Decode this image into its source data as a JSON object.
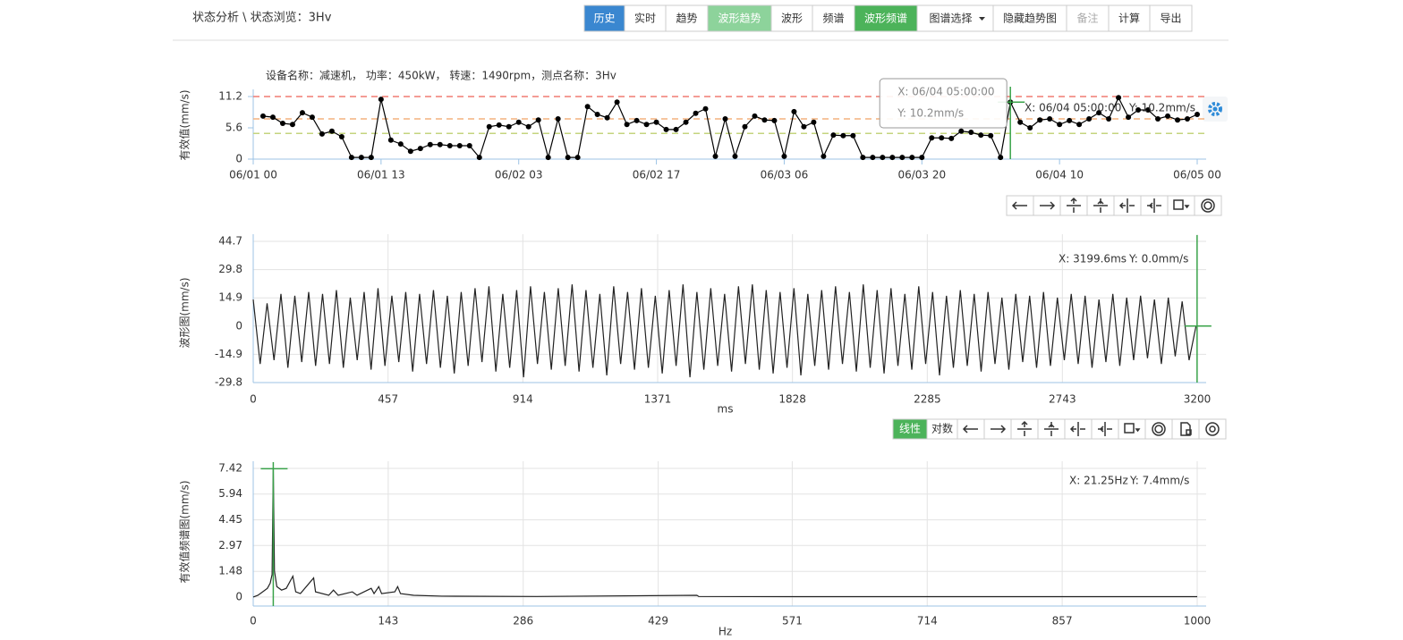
{
  "header": {
    "breadcrumb": "状态分析 \\ 状态浏览：3Hv",
    "buttons": [
      "历史",
      "实时",
      "趋势",
      "波形趋势",
      "波形",
      "频谱",
      "波形频谱",
      "图谱选择",
      "隐藏趋势图",
      "备注",
      "计算",
      "导出"
    ]
  },
  "spectrum_toolbar": [
    "线性",
    "对数"
  ],
  "chart_data": [
    {
      "type": "line",
      "subtitle": "设备名称：减速机， 功率：450kW， 转速：1490rpm，测点名称：3Hv",
      "ylabel": "有效值(mm/s)",
      "markers": true,
      "grid": false,
      "xlim": [
        0,
        96
      ],
      "ylim": [
        0,
        11.2
      ],
      "xticks": [
        {
          "value": 0,
          "label": "06/01 00"
        },
        {
          "value": 13,
          "label": "06/01 13"
        },
        {
          "value": 27,
          "label": "06/02 03"
        },
        {
          "value": 41,
          "label": "06/02 17"
        },
        {
          "value": 54,
          "label": "06/03 06"
        },
        {
          "value": 68,
          "label": "06/03 20"
        },
        {
          "value": 82,
          "label": "06/04 10"
        },
        {
          "value": 96,
          "label": "06/05 00"
        }
      ],
      "yticks": [
        0,
        5.6,
        11.2
      ],
      "thresholds": [
        {
          "value": 11.2,
          "color": "#f07b72"
        },
        {
          "value": 7.2,
          "color": "#f3b27f"
        },
        {
          "value": 4.6,
          "color": "#c4d47e"
        }
      ],
      "series": [
        {
          "color": "#000000",
          "x": [
            1,
            2,
            3,
            4,
            5,
            6,
            7,
            8,
            9,
            10,
            11,
            12,
            13,
            14,
            15,
            16,
            17,
            18,
            19,
            20,
            21,
            22,
            23,
            24,
            25,
            26,
            27,
            28,
            29,
            30,
            31,
            32,
            33,
            34,
            35,
            36,
            37,
            38,
            39,
            40,
            41,
            42,
            43,
            44,
            45,
            46,
            47,
            48,
            49,
            50,
            51,
            52,
            53,
            54,
            55,
            56,
            57,
            58,
            59,
            60,
            61,
            62,
            63,
            64,
            65,
            66,
            67,
            68,
            69,
            70,
            71,
            72,
            73,
            74,
            75,
            76,
            77,
            78,
            79,
            80,
            81,
            82,
            83,
            84,
            85,
            86,
            87,
            88,
            89,
            90,
            91,
            92,
            93,
            94,
            95,
            96
          ],
          "values": [
            7.7,
            7.5,
            6.4,
            6.2,
            8.3,
            7.5,
            4.5,
            5.0,
            4.0,
            0.3,
            0.3,
            0.3,
            10.7,
            3.4,
            2.7,
            1.4,
            1.9,
            2.6,
            2.6,
            2.4,
            2.4,
            2.4,
            0.3,
            5.8,
            6.1,
            5.8,
            6.6,
            5.8,
            7.0,
            0.3,
            7.2,
            0.3,
            0.3,
            9.4,
            8.0,
            7.4,
            10.2,
            6.2,
            6.9,
            6.2,
            6.6,
            5.3,
            5.3,
            6.6,
            8.2,
            9.0,
            0.5,
            7.2,
            0.5,
            5.8,
            7.7,
            7.0,
            6.9,
            0.5,
            8.5,
            5.8,
            6.6,
            0.5,
            4.3,
            4.2,
            4.2,
            0.3,
            0.3,
            0.3,
            0.3,
            0.3,
            0.3,
            0.3,
            3.8,
            3.8,
            3.7,
            5.0,
            4.8,
            4.3,
            4.2,
            0.3,
            10.2,
            6.6,
            5.6,
            7.0,
            7.2,
            6.2,
            6.9,
            6.2,
            7.2,
            8.3,
            7.2,
            11.0,
            7.5,
            8.8,
            8.8,
            7.2,
            7.7,
            7.0,
            7.2,
            8.0
          ]
        }
      ],
      "readout": {
        "x": {
          "value": 77,
          "label": "X: 06/04 05:00:00"
        },
        "y": {
          "value": 10.2,
          "label": "Y: 10.2mm/s"
        }
      }
    },
    {
      "type": "line",
      "ylabel": "波形图(mm/s)",
      "xlabel": "ms",
      "markers": false,
      "grid": true,
      "xlim": [
        0,
        3200
      ],
      "ylim": [
        -29.8,
        44.7
      ],
      "xticks": [
        0,
        457,
        914,
        1371,
        1828,
        2285,
        2743,
        3200
      ],
      "yticks": [
        -29.8,
        -14.9,
        0,
        14.9,
        29.8,
        44.7
      ],
      "series": [
        {
          "color": "#222222",
          "x": [
            0,
            23.5,
            47,
            70.5,
            94,
            117.5,
            141,
            164.5,
            188,
            211.5,
            235,
            258.5,
            282,
            305.5,
            329,
            352.5,
            376,
            399.5,
            423,
            446.5,
            470,
            493.5,
            517,
            540.5,
            564,
            587.5,
            611,
            634.5,
            658,
            681.5,
            705,
            728.5,
            752,
            775.5,
            799,
            822.5,
            846,
            869.5,
            893,
            916.5,
            940,
            963.5,
            987,
            1010.5,
            1034,
            1057.5,
            1081,
            1104.5,
            1128,
            1151.5,
            1175,
            1198.5,
            1222,
            1245.5,
            1269,
            1292.5,
            1316,
            1339.5,
            1363,
            1386.5,
            1410,
            1433.5,
            1457,
            1480.5,
            1504,
            1527.5,
            1551,
            1574.5,
            1598,
            1621.5,
            1645,
            1668.5,
            1692,
            1715.5,
            1739,
            1762.5,
            1786,
            1809.5,
            1833,
            1856.5,
            1880,
            1903.5,
            1927,
            1950.5,
            1974,
            1997.5,
            2021,
            2044.5,
            2068,
            2091.5,
            2115,
            2138.5,
            2162,
            2185.5,
            2209,
            2232.5,
            2256,
            2279.5,
            2303,
            2326.5,
            2350,
            2373.5,
            2397,
            2420.5,
            2444,
            2467.5,
            2491,
            2514.5,
            2538,
            2561.5,
            2585,
            2608.5,
            2632,
            2655.5,
            2679,
            2702.5,
            2726,
            2749.5,
            2773,
            2796.5,
            2820,
            2843.5,
            2867,
            2890.5,
            2914,
            2937.5,
            2961,
            2984.5,
            3008,
            3031.5,
            3055,
            3078.5,
            3102,
            3125.5,
            3149,
            3172.5,
            3196
          ],
          "values": [
            14,
            -20,
            12,
            -18,
            17,
            -22,
            16,
            -19,
            18,
            -21,
            17,
            -20,
            19,
            -22,
            15,
            -18,
            18,
            -23,
            20,
            -21,
            16,
            -19,
            18,
            -24,
            17,
            -20,
            19,
            -22,
            16,
            -25,
            18,
            -21,
            20,
            -19,
            21,
            -24,
            17,
            -22,
            19,
            -27,
            21,
            -20,
            18,
            -23,
            20,
            -21,
            22,
            -24,
            19,
            -22,
            17,
            -26,
            21,
            -20,
            18,
            -23,
            20,
            -22,
            16,
            -25,
            19,
            -21,
            22,
            -27,
            18,
            -23,
            20,
            -21,
            17,
            -24,
            21,
            -20,
            22,
            -23,
            19,
            -25,
            18,
            -22,
            20,
            -26,
            17,
            -21,
            19,
            -23,
            21,
            -20,
            18,
            -24,
            22,
            -22,
            19,
            -25,
            20,
            -21,
            17,
            -23,
            21,
            -20,
            18,
            -26,
            16,
            -22,
            19,
            -21,
            17,
            -24,
            18,
            -20,
            15,
            -23,
            17,
            -19,
            16,
            -22,
            18,
            -21,
            15,
            -18,
            17,
            -20,
            16,
            -22,
            14,
            -19,
            17,
            -21,
            15,
            -18,
            16,
            -17,
            14,
            -20,
            15,
            -16,
            13,
            -18,
            0
          ]
        }
      ],
      "readout": {
        "x": {
          "value": 3199.6,
          "label": "X: 3199.6ms"
        },
        "y": {
          "value": 0,
          "label": "Y: 0.0mm/s"
        }
      }
    },
    {
      "type": "line",
      "ylabel": "有效值频谱图(mm/s)",
      "xlabel": "Hz",
      "markers": false,
      "grid": true,
      "xlim": [
        0,
        1000
      ],
      "ylim": [
        -0.52,
        7.42
      ],
      "xticks": [
        0,
        143,
        286,
        429,
        571,
        714,
        857,
        1000
      ],
      "yticks": [
        0,
        1.48,
        2.97,
        4.45,
        5.94,
        7.42
      ],
      "series": [
        {
          "color": "#222222",
          "x": [
            0,
            5,
            10,
            15,
            18,
            20,
            21.25,
            22.5,
            25,
            30,
            35,
            42,
            45,
            50,
            64,
            66,
            80,
            85,
            90,
            105,
            110,
            125,
            128,
            133,
            136,
            150,
            153,
            156,
            170,
            200,
            300,
            470,
            472,
            600,
            800,
            1000
          ],
          "values": [
            0,
            0.1,
            0.3,
            0.5,
            0.8,
            1.3,
            7.42,
            1.5,
            0.6,
            0.4,
            0.5,
            1.2,
            0.3,
            0.2,
            1.1,
            0.3,
            0.1,
            0.4,
            0.1,
            0.3,
            0.1,
            0.5,
            0.2,
            0.6,
            0.2,
            0.3,
            0.6,
            0.2,
            0.1,
            0.05,
            0.03,
            0.1,
            0.03,
            0.02,
            0.02,
            0.02
          ]
        }
      ],
      "readout": {
        "x": {
          "value": 21.25,
          "label": "X: 21.25Hz"
        },
        "y": {
          "value": 7.4,
          "label": "Y: 7.4mm/s"
        }
      }
    }
  ]
}
